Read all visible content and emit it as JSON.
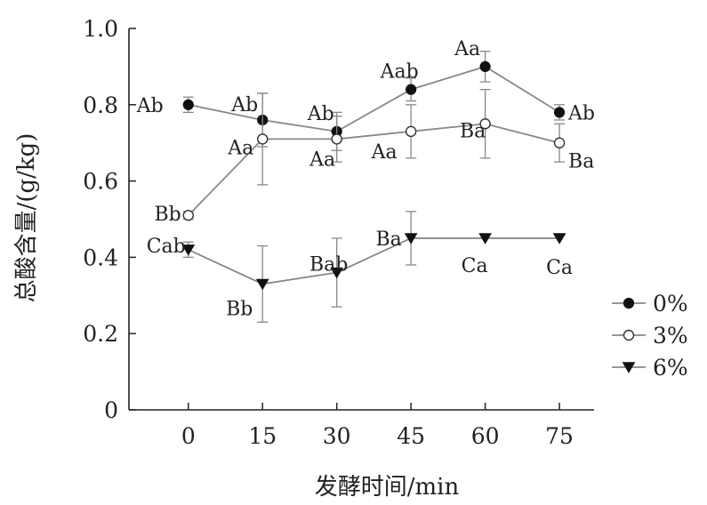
{
  "chart_data": {
    "type": "line",
    "xlabel": "发酵时间/min",
    "ylabel": "总酸含量/(g/kg)",
    "x": [
      0,
      15,
      30,
      45,
      60,
      75
    ],
    "x_ticks": [
      "0",
      "15",
      "30",
      "45",
      "60",
      "75"
    ],
    "y_ticks": [
      "0",
      "0.2",
      "0.4",
      "0.6",
      "0.8",
      "1.0"
    ],
    "xlim": [
      -12,
      82
    ],
    "ylim": [
      0,
      1.0
    ],
    "grid": false,
    "legend_position": "right",
    "series": [
      {
        "name": "0%",
        "marker": "filled-circle",
        "color": "#888888",
        "values": [
          0.8,
          0.76,
          0.73,
          0.84,
          0.9,
          0.78
        ],
        "errors": [
          0.02,
          0.07,
          0.05,
          0.03,
          0.04,
          0.02
        ],
        "labels": [
          "Ab",
          "Ab",
          "Ab",
          "Aab",
          "Aa",
          "Ab"
        ]
      },
      {
        "name": "3%",
        "marker": "open-circle",
        "color": "#888888",
        "values": [
          0.51,
          0.71,
          0.71,
          0.73,
          0.75,
          0.7
        ],
        "errors": [
          0.01,
          0.12,
          0.06,
          0.07,
          0.09,
          0.05
        ],
        "labels": [
          "Bb",
          "Aa",
          "Aa",
          "Aa",
          "Ba",
          "Ba"
        ]
      },
      {
        "name": "6%",
        "marker": "filled-triangle-down",
        "color": "#888888",
        "values": [
          0.42,
          0.33,
          0.36,
          0.45,
          0.45,
          0.45
        ],
        "errors": [
          0.02,
          0.1,
          0.09,
          0.07,
          0.0,
          0.0
        ],
        "labels": [
          "Cab",
          "Bb",
          "Bab",
          "Ba",
          "Ca",
          "Ca"
        ]
      }
    ]
  }
}
